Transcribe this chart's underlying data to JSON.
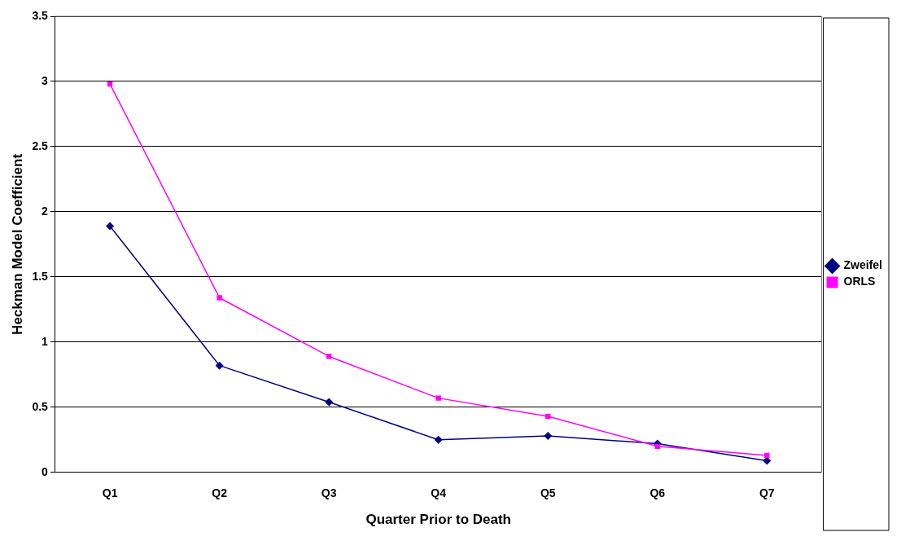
{
  "chart_data": {
    "type": "line",
    "xlabel": "Quarter Prior to Death",
    "ylabel": "Heckman Model Coefficient",
    "categories": [
      "Q1",
      "Q2",
      "Q3",
      "Q4",
      "Q5",
      "Q6",
      "Q7"
    ],
    "series": [
      {
        "name": "Zweifel",
        "color": "#000080",
        "marker": "diamond",
        "values": [
          1.89,
          0.82,
          0.54,
          0.25,
          0.28,
          0.22,
          0.09
        ]
      },
      {
        "name": "ORLS",
        "color": "#ff00ff",
        "marker": "square",
        "values": [
          2.98,
          1.34,
          0.89,
          0.57,
          0.43,
          0.2,
          0.13
        ]
      }
    ],
    "ylim": [
      0,
      3.5
    ],
    "yticks": [
      0,
      0.5,
      1,
      1.5,
      2,
      2.5,
      3,
      3.5
    ],
    "grid": "y",
    "legend": "right",
    "line_style": "solid"
  }
}
